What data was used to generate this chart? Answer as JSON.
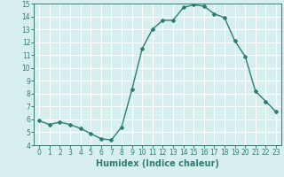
{
  "x": [
    0,
    1,
    2,
    3,
    4,
    5,
    6,
    7,
    8,
    9,
    10,
    11,
    12,
    13,
    14,
    15,
    16,
    17,
    18,
    19,
    20,
    21,
    22,
    23
  ],
  "y": [
    5.9,
    5.6,
    5.8,
    5.6,
    5.3,
    4.9,
    4.5,
    4.4,
    5.4,
    8.3,
    11.5,
    13.0,
    13.7,
    13.7,
    14.7,
    14.9,
    14.8,
    14.2,
    13.9,
    12.1,
    10.9,
    8.2,
    7.4,
    6.6
  ],
  "line_color": "#2e7d72",
  "marker": "D",
  "marker_size": 2.0,
  "bg_color": "#d8eff0",
  "grid_color": "#ffffff",
  "xlabel": "Humidex (Indice chaleur)",
  "xlim": [
    -0.5,
    23.5
  ],
  "ylim": [
    4,
    15
  ],
  "yticks": [
    4,
    5,
    6,
    7,
    8,
    9,
    10,
    11,
    12,
    13,
    14,
    15
  ],
  "xticks": [
    0,
    1,
    2,
    3,
    4,
    5,
    6,
    7,
    8,
    9,
    10,
    11,
    12,
    13,
    14,
    15,
    16,
    17,
    18,
    19,
    20,
    21,
    22,
    23
  ],
  "tick_label_fontsize": 5.5,
  "xlabel_fontsize": 7.0,
  "tick_color": "#2e7d72",
  "label_color": "#2e7d72",
  "linewidth": 1.0
}
